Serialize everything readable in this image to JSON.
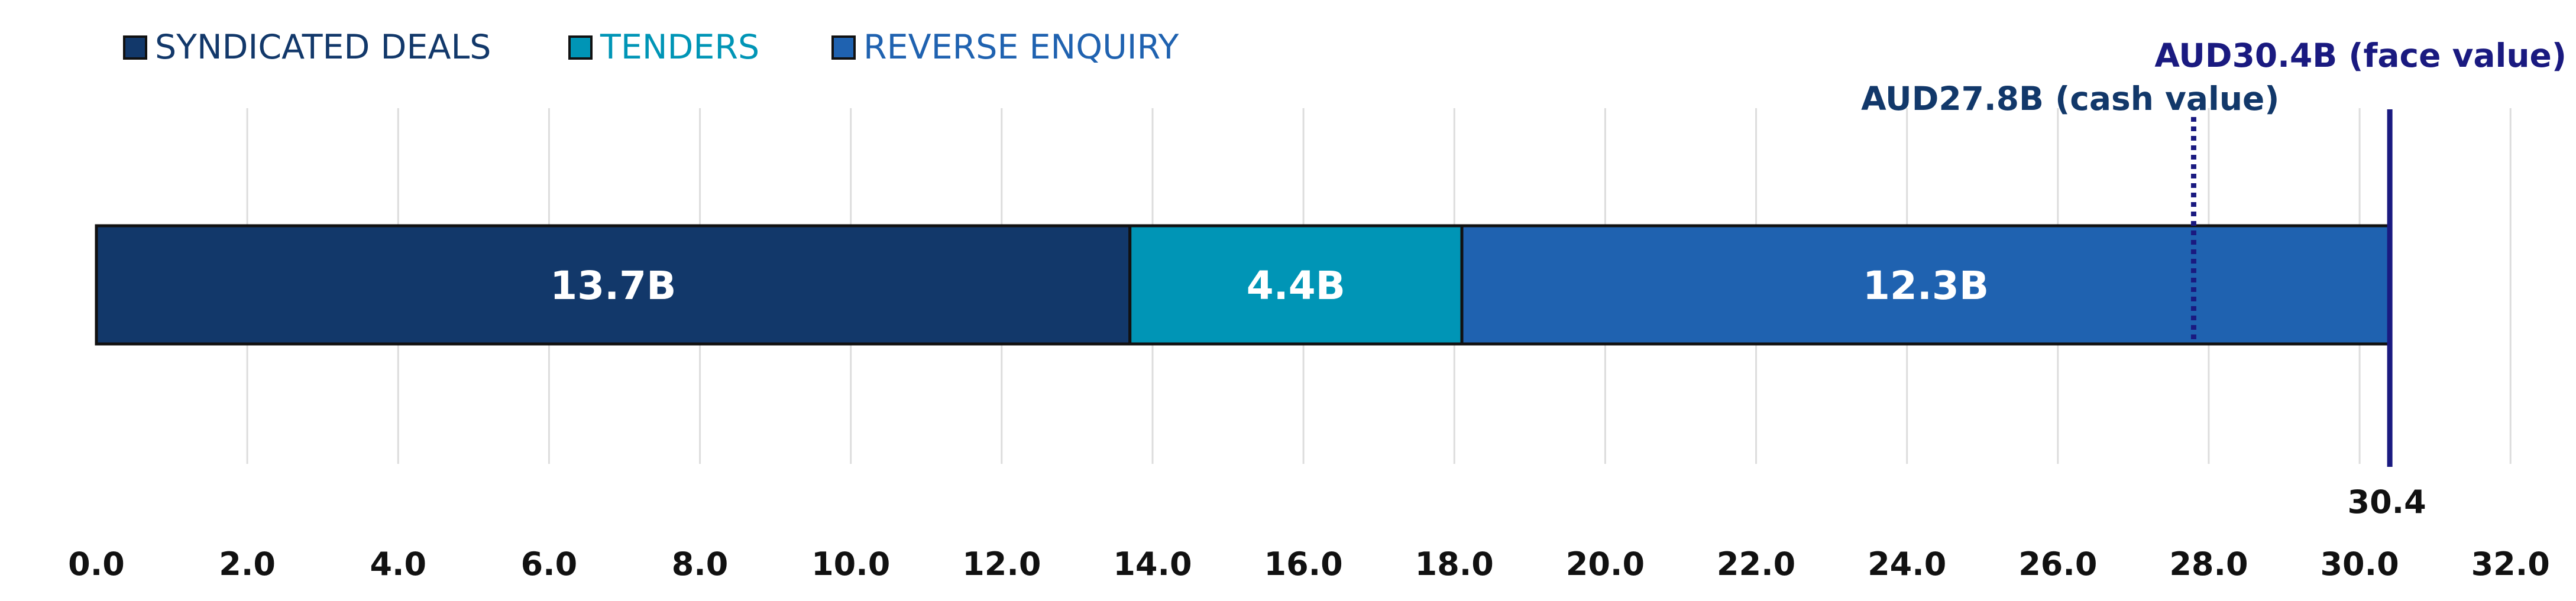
{
  "chart_data": {
    "type": "bar",
    "orientation": "horizontal",
    "stacked": true,
    "series": [
      {
        "name": "SYNDICATED DEALS",
        "value": 13.7,
        "label": "13.7B",
        "color": "#12386A"
      },
      {
        "name": "TENDERS",
        "value": 4.4,
        "label": "4.4B",
        "color": "#0095B6"
      },
      {
        "name": "REVERSE ENQUIRY",
        "value": 12.3,
        "label": "12.3B",
        "color": "#1F62B0"
      }
    ],
    "legend_text_colors": [
      "#12386A",
      "#0095B6",
      "#1F62B0"
    ],
    "xlim": [
      0,
      32
    ],
    "xticks": [
      "0.0",
      "2.0",
      "4.0",
      "6.0",
      "8.0",
      "10.0",
      "12.0",
      "14.0",
      "16.0",
      "18.0",
      "20.0",
      "22.0",
      "24.0",
      "26.0",
      "28.0",
      "30.0",
      "32.0"
    ],
    "grid": true,
    "legend_position": "top-left",
    "annotations": [
      {
        "x": 30.4,
        "text": "AUD30.4B (face value)",
        "style": "solid",
        "color": "#1A1A80",
        "value_label": "30.4"
      },
      {
        "x": 27.8,
        "text": "AUD27.8B (cash value)",
        "style": "dotted",
        "color": "#1A1A80",
        "text_color": "#12386A"
      }
    ]
  }
}
